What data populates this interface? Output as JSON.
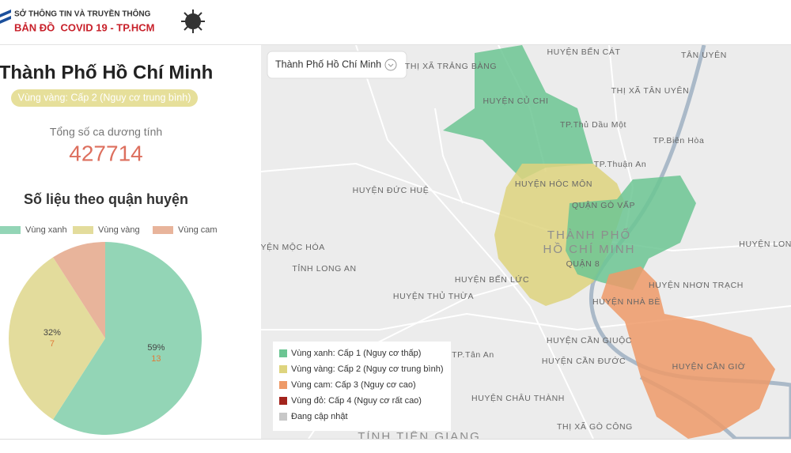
{
  "header": {
    "org": "SỞ THÔNG TIN VÀ TRUYỀN THÔNG",
    "title": "BẢN ĐỒ  COVID 19 - TP.HCM"
  },
  "summary": {
    "city": "Thành Phố Hồ Chí Minh",
    "level": "Vùng vàng: Cấp 2 (Nguy cơ trung bình)",
    "total_label": "Tổng số ca dương tính",
    "total": 427714,
    "section_title": "Số liệu theo quận huyện"
  },
  "chart_data": {
    "type": "pie",
    "categories": [
      "Vùng xanh",
      "Vùng vàng",
      "Vùng cam"
    ],
    "values": [
      13,
      7,
      2
    ],
    "colors": [
      "#93d5b6",
      "#e3dc9c",
      "#e8b49b"
    ],
    "percent_labels": [
      "59%",
      "32%",
      null
    ]
  },
  "map": {
    "selector": "Thành Phố Hồ Chí Minh",
    "legend": [
      {
        "label": "Vùng xanh: Cấp 1 (Nguy cơ thấp)",
        "color": "#6cc593"
      },
      {
        "label": "Vùng vàng: Cấp 2 (Nguy cơ trung bình)",
        "color": "#ded47e"
      },
      {
        "label": "Vùng cam: Cấp 3 (Nguy cơ cao)",
        "color": "#ee9a68"
      },
      {
        "label": "Vùng đỏ: Cấp 4 (Nguy cơ rất cao)",
        "color": "#a3241d"
      },
      {
        "label": "Đang cập nhật",
        "color": "#c8c8c8"
      }
    ],
    "places": [
      "THỊ XÃ TRẢNG BÀNG",
      "HUYỆN BẾN CÁT",
      "HUYỆN CỦ CHI",
      "THỊ XÃ TÂN UYÊN",
      "TP.Thủ Dầu Một",
      "TP.Biên Hòa",
      "TP.Thuận An",
      "HUYỆN ĐỨC HUỆ",
      "HUYỆN HÓC MÔN",
      "QUẬN GÒ VẤP",
      "THÀNH PHỐ",
      "HỒ CHÍ MINH",
      "QUẬN 8",
      "HUYỆN MỘC HÓA",
      "TỈNH LONG AN",
      "HUYỆN BẾN LỨC",
      "HUYỆN THỦ THỪA",
      "HUYỆN NHÀ BÈ",
      "HUYỆN NHƠN TRẠCH",
      "HUYỆN LONG",
      "HUYỆN CẦN GIUỘC",
      "HUYỆN CẦN ĐƯỚC",
      "HUYỆN CẦN GIỜ",
      "HUYỆN CHÂU THÀNH",
      "THỊ XÃ GÒ CÔNG",
      "TỈNH TIỀN GIANG",
      "TP.Tân An",
      "TÂN UYÊN"
    ]
  }
}
